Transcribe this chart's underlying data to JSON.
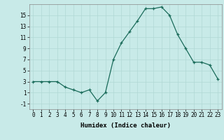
{
  "x": [
    0,
    1,
    2,
    3,
    4,
    5,
    6,
    7,
    8,
    9,
    10,
    11,
    12,
    13,
    14,
    15,
    16,
    17,
    18,
    19,
    20,
    21,
    22,
    23
  ],
  "y": [
    3,
    3,
    3,
    3,
    2,
    1.5,
    1,
    1.5,
    -0.5,
    1,
    7,
    10,
    12,
    14,
    16.2,
    16.2,
    16.5,
    15,
    11.5,
    9,
    6.5,
    6.5,
    6,
    3.5
  ],
  "line_color": "#1a6b5a",
  "marker": "+",
  "marker_size": 3,
  "background_color": "#c8eae8",
  "grid_color": "#b0d8d4",
  "xlabel": "Humidex (Indice chaleur)",
  "ylabel": "",
  "xlim": [
    -0.5,
    23.5
  ],
  "ylim": [
    -2,
    17
  ],
  "yticks": [
    -1,
    1,
    3,
    5,
    7,
    9,
    11,
    13,
    15
  ],
  "xtick_labels": [
    "0",
    "1",
    "2",
    "3",
    "4",
    "5",
    "6",
    "7",
    "8",
    "9",
    "10",
    "11",
    "12",
    "13",
    "14",
    "15",
    "16",
    "17",
    "18",
    "19",
    "20",
    "21",
    "22",
    "23"
  ],
  "label_fontsize": 6.5,
  "tick_fontsize": 5.5
}
